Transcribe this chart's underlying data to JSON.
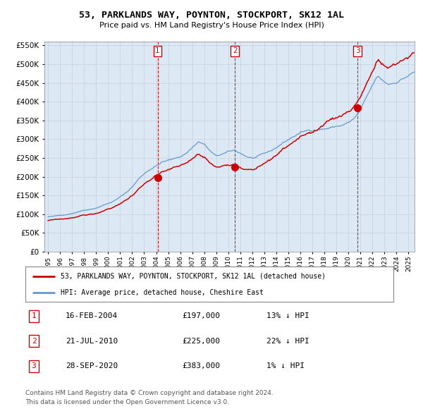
{
  "title": "53, PARKLANDS WAY, POYNTON, STOCKPORT, SK12 1AL",
  "subtitle": "Price paid vs. HM Land Registry's House Price Index (HPI)",
  "legend_line1": "53, PARKLANDS WAY, POYNTON, STOCKPORT, SK12 1AL (detached house)",
  "legend_line2": "HPI: Average price, detached house, Cheshire East",
  "transactions": [
    {
      "num": 1,
      "date_str": "16-FEB-2004",
      "year": 2004.12,
      "price": 197000,
      "hpi_pct": "13% ↓ HPI"
    },
    {
      "num": 2,
      "date_str": "21-JUL-2010",
      "year": 2010.55,
      "price": 225000,
      "hpi_pct": "22% ↓ HPI"
    },
    {
      "num": 3,
      "date_str": "28-SEP-2020",
      "year": 2020.75,
      "price": 383000,
      "hpi_pct": "1% ↓ HPI"
    }
  ],
  "table_rows": [
    [
      "1",
      "16-FEB-2004",
      "£197,000",
      "13% ↓ HPI"
    ],
    [
      "2",
      "21-JUL-2010",
      "£225,000",
      "22% ↓ HPI"
    ],
    [
      "3",
      "28-SEP-2020",
      "£383,000",
      "1% ↓ HPI"
    ]
  ],
  "footnote1": "Contains HM Land Registry data © Crown copyright and database right 2024.",
  "footnote2": "This data is licensed under the Open Government Licence v3.0.",
  "hpi_color": "#6699cc",
  "price_color": "#cc0000",
  "plot_bg": "#dce9f5",
  "ylim": [
    0,
    560000
  ],
  "yticks": [
    0,
    50000,
    100000,
    150000,
    200000,
    250000,
    300000,
    350000,
    400000,
    450000,
    500000,
    550000
  ],
  "xlim_start": 1994.7,
  "xlim_end": 2025.5,
  "xtick_years": [
    1995,
    1996,
    1997,
    1998,
    1999,
    2000,
    2001,
    2002,
    2003,
    2004,
    2005,
    2006,
    2007,
    2008,
    2009,
    2010,
    2011,
    2012,
    2013,
    2014,
    2015,
    2016,
    2017,
    2018,
    2019,
    2020,
    2021,
    2022,
    2023,
    2024,
    2025
  ]
}
